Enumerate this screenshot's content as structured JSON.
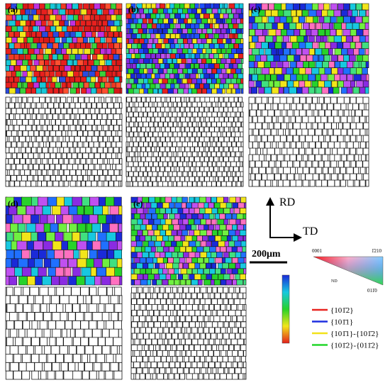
{
  "panels": [
    "(a)",
    "(b)",
    "(c)",
    "(d)",
    "(e)"
  ],
  "axes": {
    "rd": "RD",
    "td": "TD"
  },
  "scale_bar": "200μm",
  "ipf": {
    "corner_left": "0001",
    "corner_top_right": "1̄210",
    "label": "ND",
    "corner_bottom_right": "011̄0"
  },
  "legend": [
    {
      "label": "{101̄2}",
      "color": "#e8231f"
    },
    {
      "label": "{101̄1}",
      "color": "#1f2fe0"
    },
    {
      "label": "{101̄1}-{101̄2}",
      "color": "#f2e21a"
    },
    {
      "label": "{101̄2}-{011̄2}",
      "color": "#22d62a"
    }
  ]
}
